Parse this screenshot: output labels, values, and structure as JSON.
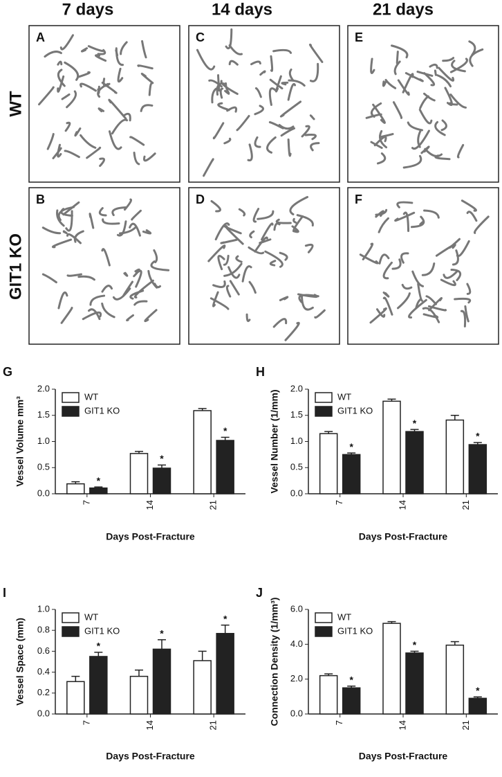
{
  "image_panels": {
    "columns": [
      "7 days",
      "14 days",
      "21 days"
    ],
    "rows": [
      "WT",
      "GIT1 KO"
    ],
    "labels": [
      [
        "A",
        "C",
        "E"
      ],
      [
        "B",
        "D",
        "F"
      ]
    ]
  },
  "chart_data": [
    {
      "type": "bar",
      "panel": "G",
      "y_label": "Vessel Volume mm³",
      "x_label": "Days Post-Fracture",
      "categories": [
        "7",
        "14",
        "21"
      ],
      "ylim": [
        0,
        2
      ],
      "yticks": [
        {
          "value": 0,
          "label": "0.0"
        },
        0.5,
        {
          "value": 1,
          "label": "1.0"
        },
        1.5,
        {
          "value": 2,
          "label": "2.0"
        }
      ],
      "series": [
        {
          "name": "WT",
          "color": "#ffffff",
          "values": [
            0.19,
            0.77,
            1.59
          ],
          "errors": [
            0.04,
            0.04,
            0.04
          ]
        },
        {
          "name": "GIT1 KO",
          "color": "#222222",
          "values": [
            0.11,
            0.49,
            1.02
          ],
          "errors": [
            0.02,
            0.06,
            0.06
          ],
          "annotations": [
            "*",
            "*",
            "*"
          ]
        }
      ]
    },
    {
      "type": "bar",
      "panel": "H",
      "y_label": "Vessel Number (1/mm)",
      "x_label": "Days Post-Fracture",
      "categories": [
        "7",
        "14",
        "21"
      ],
      "ylim": [
        0,
        2
      ],
      "yticks": [
        {
          "value": 0,
          "label": "0.0"
        },
        0.5,
        {
          "value": 1,
          "label": "1.0"
        },
        1.5,
        {
          "value": 2,
          "label": "2.0"
        }
      ],
      "series": [
        {
          "name": "WT",
          "color": "#ffffff",
          "values": [
            1.15,
            1.77,
            1.41
          ],
          "errors": [
            0.04,
            0.04,
            0.09
          ]
        },
        {
          "name": "GIT1 KO",
          "color": "#222222",
          "values": [
            0.75,
            1.19,
            0.94
          ],
          "errors": [
            0.03,
            0.04,
            0.04
          ],
          "annotations": [
            "*",
            "*",
            "*"
          ]
        }
      ]
    },
    {
      "type": "bar",
      "panel": "I",
      "y_label": "Vessel Space (mm)",
      "x_label": "Days Post-Fracture",
      "categories": [
        "7",
        "14",
        "21"
      ],
      "ylim": [
        0,
        1
      ],
      "yticks": [
        {
          "value": 0,
          "label": "0.0"
        },
        0.2,
        0.4,
        0.6,
        0.8,
        {
          "value": 1,
          "label": "1.0"
        }
      ],
      "series": [
        {
          "name": "WT",
          "color": "#ffffff",
          "values": [
            0.31,
            0.36,
            0.51
          ],
          "errors": [
            0.05,
            0.06,
            0.09
          ]
        },
        {
          "name": "GIT1 KO",
          "color": "#222222",
          "values": [
            0.55,
            0.62,
            0.77
          ],
          "errors": [
            0.04,
            0.09,
            0.08
          ],
          "annotations": [
            "*",
            "*",
            "*"
          ]
        }
      ]
    },
    {
      "type": "bar",
      "panel": "J",
      "y_label": "Connection Density (1/mm³)",
      "x_label": "Days Post-Fracture",
      "categories": [
        "7",
        "14",
        "21"
      ],
      "ylim": [
        0,
        6
      ],
      "yticks": [
        {
          "value": 0,
          "label": "0.0"
        },
        {
          "value": 2,
          "label": "2.0"
        },
        {
          "value": 4,
          "label": "4.0"
        },
        {
          "value": 6,
          "label": "6.0"
        }
      ],
      "series": [
        {
          "name": "WT",
          "color": "#ffffff",
          "values": [
            2.2,
            5.2,
            3.95
          ],
          "errors": [
            0.1,
            0.1,
            0.2
          ]
        },
        {
          "name": "GIT1 KO",
          "color": "#222222",
          "values": [
            1.5,
            3.5,
            0.9
          ],
          "errors": [
            0.1,
            0.1,
            0.08
          ],
          "annotations": [
            "*",
            "*",
            "*"
          ]
        }
      ]
    }
  ]
}
